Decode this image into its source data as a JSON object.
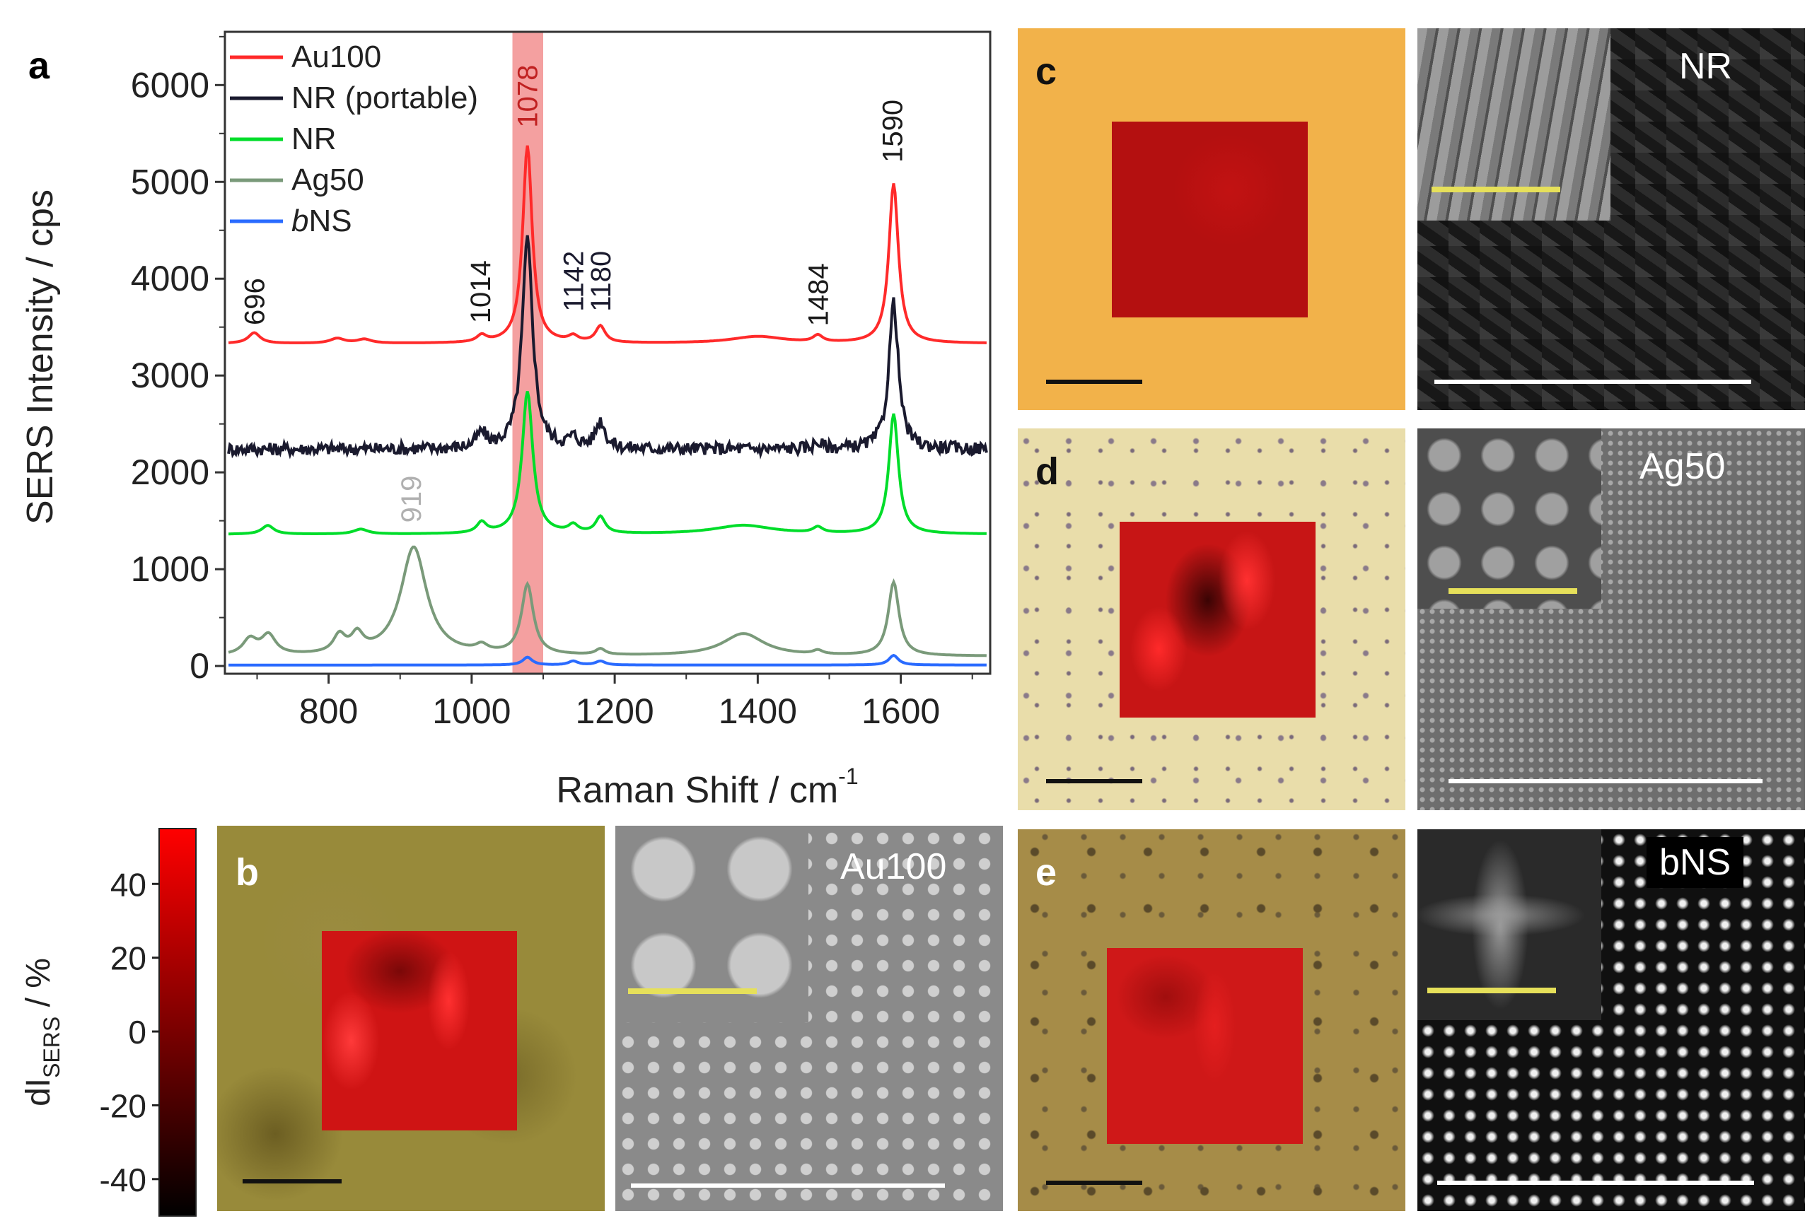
{
  "figure": {
    "panel_labels": {
      "a": "a",
      "b": "b",
      "c": "c",
      "d": "d",
      "e": "e"
    },
    "sem_labels": {
      "b": "Au100",
      "c": "NR",
      "d": "Ag50",
      "e": "bNS"
    }
  },
  "colorbar": {
    "label_main": "dI",
    "label_sub": "SERS",
    "label_unit": " / %",
    "ticks": [
      40,
      20,
      0,
      -20,
      -40
    ],
    "range": [
      -50,
      55
    ],
    "colors": [
      "#000000",
      "#ff0000"
    ]
  },
  "chart_data": {
    "type": "line",
    "xlabel_main": "Raman Shift / cm",
    "xlabel_sup": "-1",
    "ylabel": "SERS Intensity / cps",
    "xlim": [
      655,
      1725
    ],
    "ylim": [
      -80,
      6550
    ],
    "xticks": [
      800,
      1000,
      1200,
      1400,
      1600
    ],
    "yticks": [
      0,
      1000,
      2000,
      3000,
      4000,
      5000,
      6000
    ],
    "highlight_band": {
      "x0": 1057,
      "x1": 1100,
      "color": "#f08080"
    },
    "series": [
      {
        "name": "Au100",
        "color": "#ff2a2a",
        "baseline": 3330,
        "peaks": [
          [
            696,
            110,
            10
          ],
          [
            812,
            50,
            12
          ],
          [
            850,
            40,
            12
          ],
          [
            1014,
            70,
            8
          ],
          [
            1078,
            2040,
            8
          ],
          [
            1142,
            60,
            8
          ],
          [
            1180,
            170,
            8
          ],
          [
            1400,
            70,
            45
          ],
          [
            1484,
            70,
            8
          ],
          [
            1590,
            1650,
            8
          ]
        ]
      },
      {
        "name": "NR (portable)",
        "color": "#1a1a2e",
        "baseline": 2240,
        "noise": 65,
        "peaks": [
          [
            1014,
            150,
            8
          ],
          [
            1078,
            2150,
            9
          ],
          [
            1142,
            100,
            8
          ],
          [
            1180,
            280,
            8
          ],
          [
            1484,
            60,
            8
          ],
          [
            1590,
            1510,
            8
          ]
        ]
      },
      {
        "name": "NR",
        "color": "#00dd2a",
        "baseline": 1360,
        "peaks": [
          [
            715,
            90,
            10
          ],
          [
            845,
            50,
            12
          ],
          [
            1014,
            110,
            8
          ],
          [
            1078,
            1470,
            9
          ],
          [
            1142,
            80,
            8
          ],
          [
            1180,
            170,
            8
          ],
          [
            1380,
            90,
            50
          ],
          [
            1484,
            60,
            8
          ],
          [
            1590,
            1240,
            8
          ]
        ]
      },
      {
        "name": "Ag50",
        "color": "#7a9a7a",
        "baseline": 100,
        "peaks": [
          [
            690,
            160,
            12
          ],
          [
            716,
            200,
            12
          ],
          [
            815,
            180,
            10
          ],
          [
            840,
            180,
            10
          ],
          [
            919,
            1120,
            22
          ],
          [
            1014,
            70,
            10
          ],
          [
            1078,
            720,
            10
          ],
          [
            1180,
            60,
            8
          ],
          [
            1380,
            230,
            35
          ],
          [
            1484,
            40,
            8
          ],
          [
            1590,
            760,
            9
          ]
        ]
      },
      {
        "name": "bNS",
        "color": "#2a6bff",
        "baseline": 10,
        "peaks": [
          [
            1078,
            80,
            8
          ],
          [
            1142,
            40,
            8
          ],
          [
            1180,
            40,
            8
          ],
          [
            1590,
            100,
            8
          ]
        ]
      }
    ],
    "annotations": [
      {
        "text": "696",
        "x": 696,
        "y": 3520,
        "color": "#1a1a1a",
        "rotated": true
      },
      {
        "text": "1014",
        "x": 1012,
        "y": 3540,
        "color": "#1a1a1a",
        "rotated": true
      },
      {
        "text": "1078",
        "x": 1078,
        "y": 5560,
        "color": "#c02020",
        "rotated": true
      },
      {
        "text": "1142",
        "x": 1142,
        "y": 3660,
        "color": "#1a1a2e",
        "rotated": true
      },
      {
        "text": "1180",
        "x": 1180,
        "y": 3660,
        "color": "#1a1a2e",
        "rotated": true
      },
      {
        "text": "1484",
        "x": 1484,
        "y": 3510,
        "color": "#1a1a1a",
        "rotated": true
      },
      {
        "text": "1590",
        "x": 1588,
        "y": 5200,
        "color": "#1a1a1a",
        "rotated": true
      },
      {
        "text": "919",
        "x": 915,
        "y": 1480,
        "color": "#b0b0b0",
        "rotated": true
      }
    ]
  }
}
